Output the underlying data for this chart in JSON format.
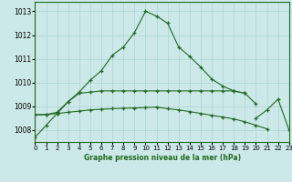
{
  "x": [
    0,
    1,
    2,
    3,
    4,
    5,
    6,
    7,
    8,
    9,
    10,
    11,
    12,
    13,
    14,
    15,
    16,
    17,
    18,
    19,
    20,
    21,
    22,
    23
  ],
  "line1": [
    1007.7,
    1008.2,
    1008.7,
    1009.2,
    1009.6,
    1010.1,
    1010.5,
    1011.15,
    1011.5,
    1012.1,
    1013.0,
    1012.8,
    1012.5,
    1011.5,
    1011.1,
    1010.65,
    1010.15,
    1009.85,
    1009.65,
    1009.55,
    null,
    null,
    null,
    null
  ],
  "line2": [
    1008.65,
    1008.65,
    1008.75,
    1009.2,
    1009.55,
    1009.6,
    1009.65,
    1009.65,
    1009.65,
    1009.65,
    1009.65,
    1009.65,
    1009.65,
    1009.65,
    1009.65,
    1009.65,
    1009.65,
    1009.65,
    1009.65,
    1009.55,
    1009.1,
    null,
    null,
    null
  ],
  "line3": [
    1008.65,
    1008.65,
    1008.7,
    1008.75,
    1008.8,
    1008.85,
    1008.88,
    1008.9,
    1008.92,
    1008.93,
    1008.95,
    1008.97,
    1008.9,
    1008.85,
    1008.78,
    1008.7,
    1008.62,
    1008.55,
    1008.47,
    1008.35,
    1008.2,
    1008.05,
    null,
    null
  ],
  "line4": [
    null,
    null,
    null,
    null,
    null,
    null,
    null,
    null,
    null,
    null,
    null,
    null,
    null,
    null,
    null,
    null,
    null,
    null,
    null,
    null,
    1008.5,
    1008.85,
    1009.3,
    1008.0
  ],
  "line_color": "#1e6b1e",
  "background_color": "#cce8e8",
  "grid_color": "#aad4d4",
  "xlabel": "Graphe pression niveau de la mer (hPa)",
  "xlim": [
    0,
    23
  ],
  "ylim": [
    1007.5,
    1013.4
  ],
  "yticks": [
    1008,
    1009,
    1010,
    1011,
    1012,
    1013
  ],
  "xticks": [
    0,
    1,
    2,
    3,
    4,
    5,
    6,
    7,
    8,
    9,
    10,
    11,
    12,
    13,
    14,
    15,
    16,
    17,
    18,
    19,
    20,
    21,
    22,
    23
  ]
}
